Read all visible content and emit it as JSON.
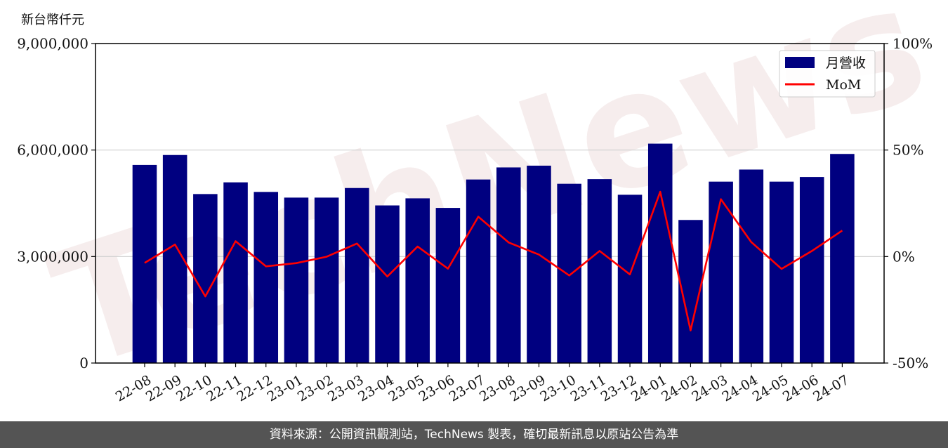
{
  "chart_data": {
    "type": "bar",
    "y_axis_unit": "新台幣仟元",
    "categories": [
      "22-08",
      "22-09",
      "22-10",
      "22-11",
      "22-12",
      "23-01",
      "23-02",
      "23-03",
      "23-04",
      "23-05",
      "23-06",
      "23-07",
      "23-08",
      "23-09",
      "23-10",
      "23-11",
      "23-12",
      "24-01",
      "24-02",
      "24-03",
      "24-04",
      "24-05",
      "24-06",
      "24-07"
    ],
    "series": [
      {
        "name": "月營收",
        "axis": "left",
        "color": "#000080",
        "values": [
          5580000,
          5860000,
          4760000,
          5090000,
          4820000,
          4660000,
          4660000,
          4930000,
          4440000,
          4640000,
          4370000,
          5170000,
          5510000,
          5560000,
          5050000,
          5180000,
          4740000,
          6180000,
          4030000,
          5110000,
          5450000,
          5110000,
          5240000,
          5890000
        ]
      },
      {
        "name": "MoM",
        "axis": "right",
        "color": "#ff0000",
        "values": [
          -3,
          5.6,
          -18.7,
          7.2,
          -4.6,
          -3.1,
          -0.1,
          6.1,
          -9.4,
          4.7,
          -5.7,
          18.7,
          6.6,
          0.9,
          -8.9,
          2.6,
          -8.4,
          30.4,
          -34.7,
          26.9,
          6.8,
          -5.8,
          2.6,
          12.2
        ]
      }
    ],
    "ylim_left": [
      0,
      9000000
    ],
    "ylim_right": [
      -50,
      100
    ],
    "yticks_left": [
      "0",
      "3,000,000",
      "6,000,000",
      "9,000,000"
    ],
    "yticks_right": [
      "-50%",
      "0%",
      "50%",
      "100%"
    ],
    "grid": true,
    "legend_position": "top-right"
  },
  "watermark": "TechNews",
  "footer": {
    "text": "資料來源：公開資訊觀測站，TechNews 製表，確切最新訊息以原站公告為準"
  }
}
